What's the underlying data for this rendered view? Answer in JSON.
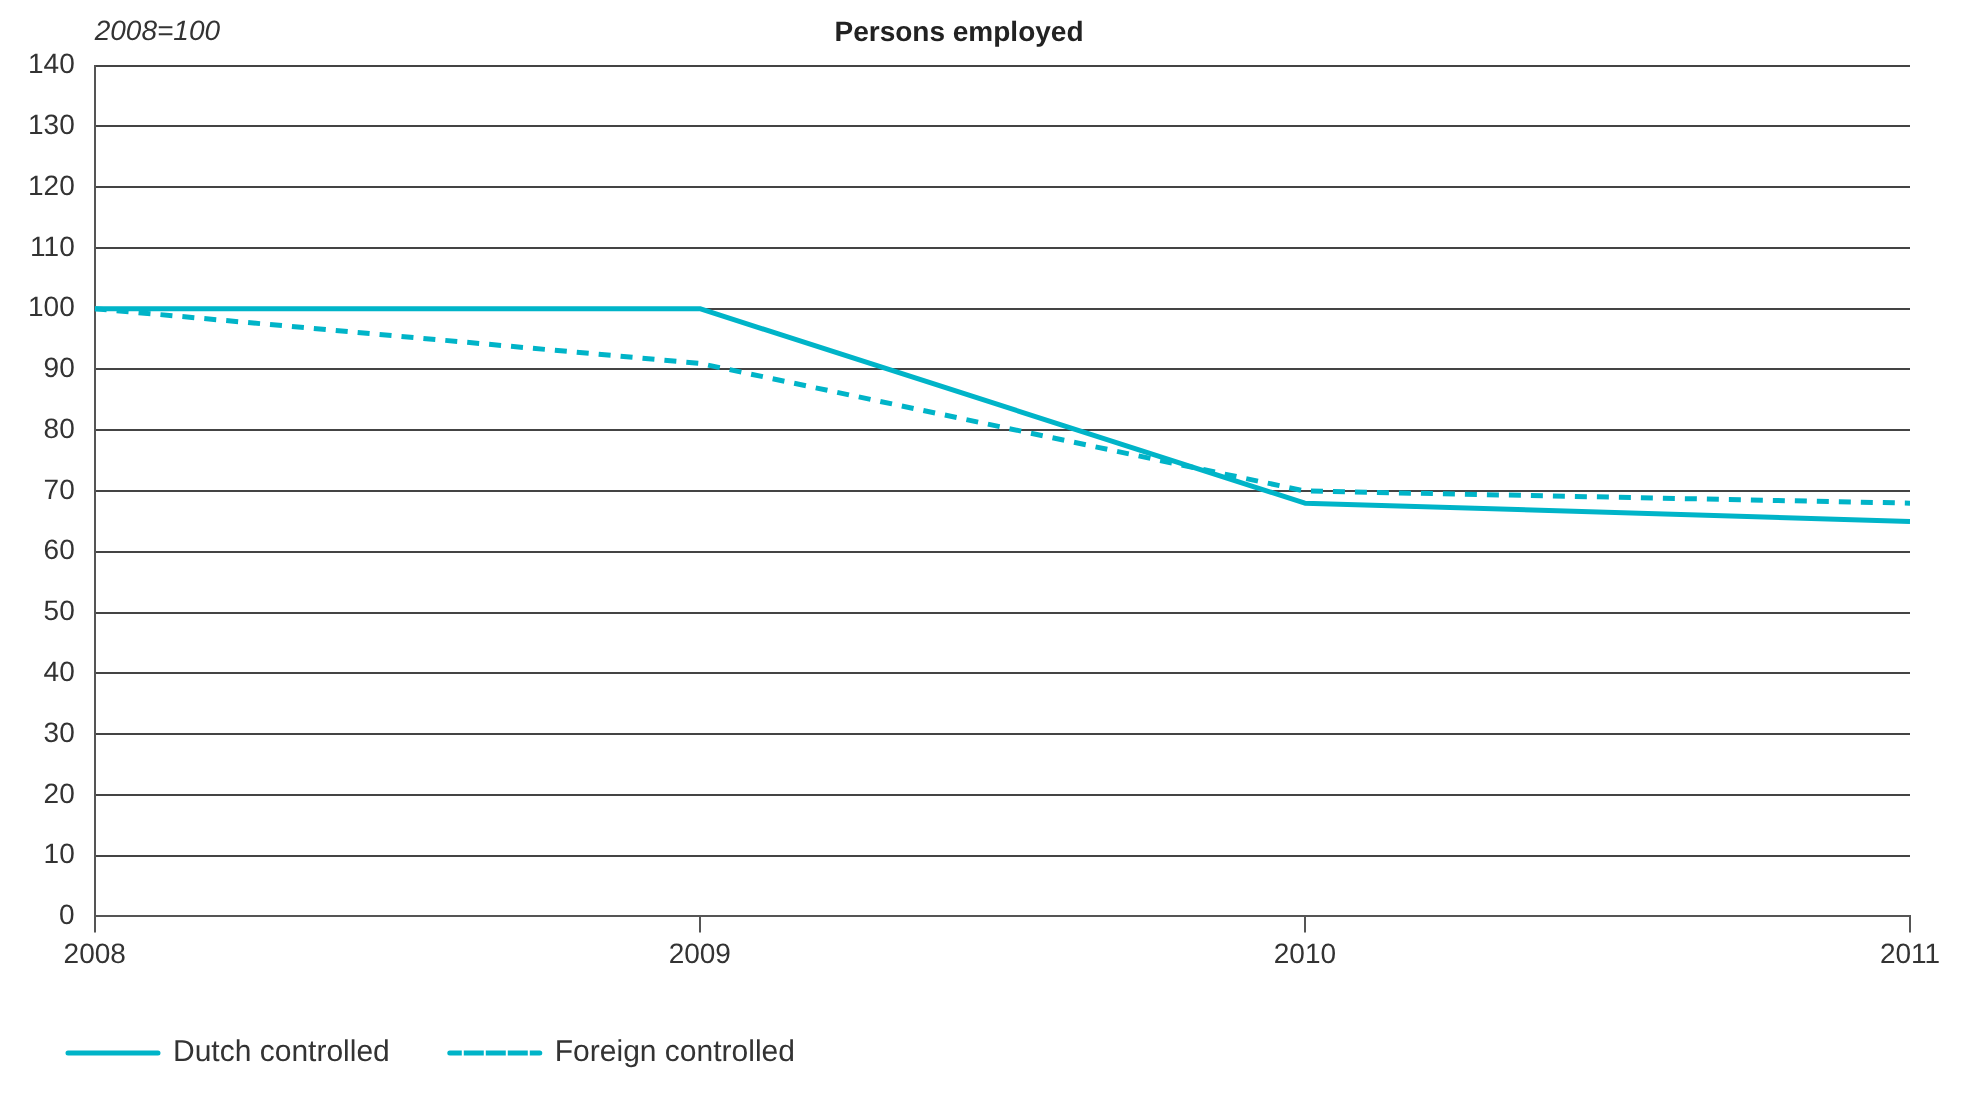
{
  "chart_data": {
    "type": "line",
    "title": "Persons employed",
    "ylabel": "2008=100",
    "x": [
      2008,
      2009,
      2010,
      2011
    ],
    "series": [
      {
        "name": "Dutch controlled",
        "color": "#00b4c8",
        "values": [
          100,
          100,
          68,
          65
        ],
        "line_style": "solid"
      },
      {
        "name": "Foreign controlled",
        "color": "#00b4c8",
        "values": [
          100,
          91,
          70,
          68
        ],
        "line_style": "dashed"
      }
    ],
    "xlim": [
      2008,
      2011
    ],
    "xticks": [
      2008,
      2009,
      2010,
      2011
    ],
    "ylim": [
      0,
      140
    ],
    "yticks": [
      0,
      10,
      20,
      30,
      40,
      50,
      60,
      70,
      80,
      90,
      100,
      110,
      120,
      130,
      140
    ],
    "grid": "y",
    "legend": "bottom left",
    "marker": "none"
  }
}
